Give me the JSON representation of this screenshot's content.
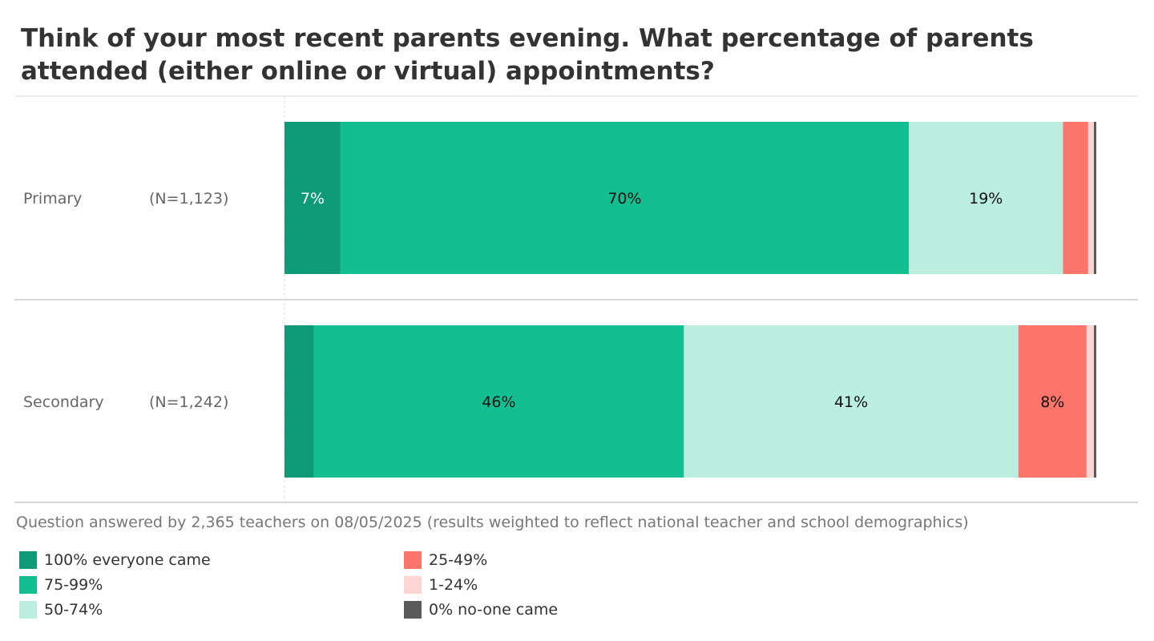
{
  "chart_data": {
    "type": "bar",
    "orientation": "horizontal",
    "stacked": true,
    "title": "Think of your most recent parents evening. What percentage of parents attended (either online or virtual) appointments?",
    "categories": [
      "Primary",
      "Secondary"
    ],
    "category_n": [
      "(N=1,123)",
      "(N=1,242)"
    ],
    "series": [
      {
        "name": "100% everyone came",
        "color": "#0e9a76",
        "values": [
          6.9,
          3.6
        ]
      },
      {
        "name": "75-99%",
        "color": "#13bf91",
        "values": [
          70.0,
          45.6
        ]
      },
      {
        "name": "50-74%",
        "color": "#bbeedf",
        "values": [
          19.0,
          41.2
        ]
      },
      {
        "name": "25-49%",
        "color": "#fd746b",
        "values": [
          3.1,
          8.4
        ]
      },
      {
        "name": "1-24%",
        "color": "#fdd5d2",
        "values": [
          0.7,
          0.9
        ]
      },
      {
        "name": "0% no-one came",
        "color": "#5a5a5a",
        "values": [
          0.3,
          0.3
        ]
      }
    ],
    "data_labels": [
      [
        "7%",
        "70%",
        "19%",
        "",
        "",
        ""
      ],
      [
        "",
        "46%",
        "41%",
        "8%",
        "",
        ""
      ]
    ],
    "xlim": [
      0,
      100
    ],
    "grid": false,
    "legend_position": "bottom"
  },
  "note": "Question answered by 2,365 teachers on 08/05/2025 (results weighted to reflect national teacher and school demographics)"
}
